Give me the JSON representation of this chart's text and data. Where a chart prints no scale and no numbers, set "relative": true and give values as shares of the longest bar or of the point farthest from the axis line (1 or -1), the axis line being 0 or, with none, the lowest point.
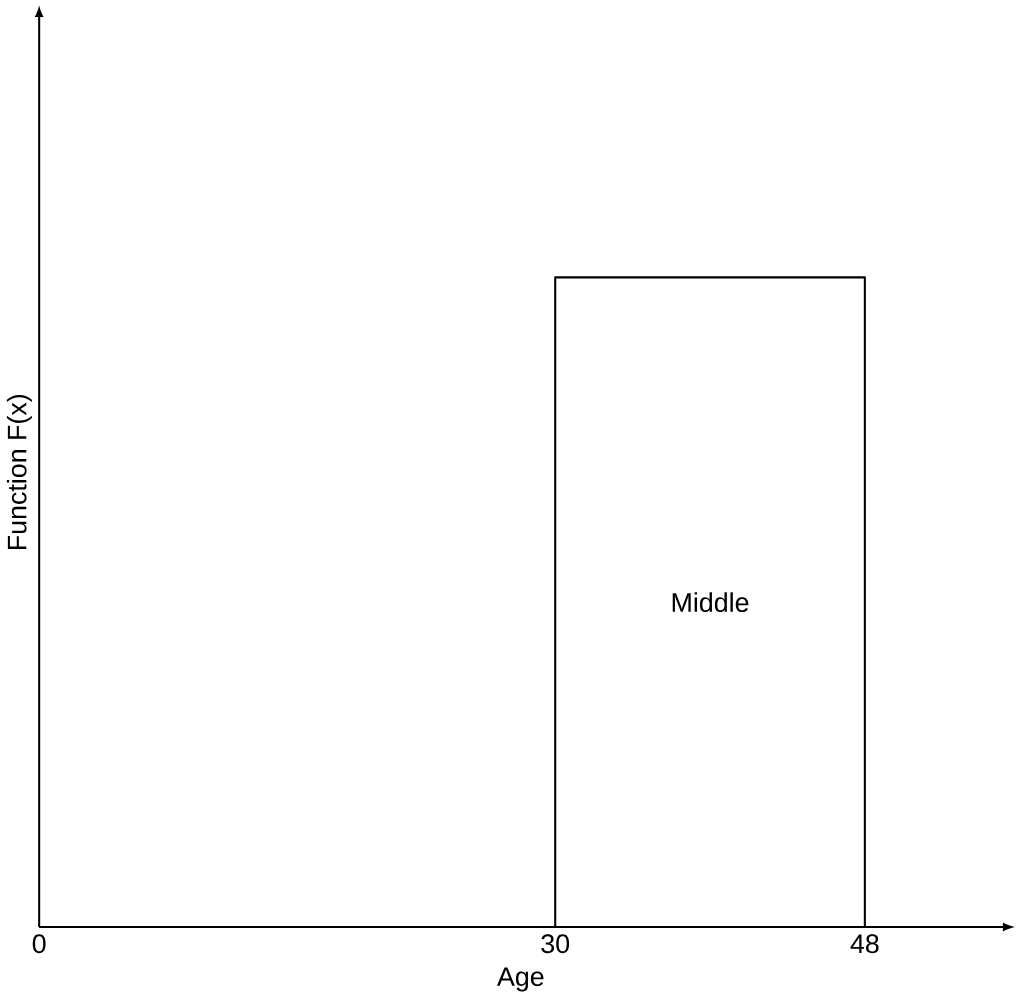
{
  "chart_data": {
    "type": "step",
    "xlabel": "Age",
    "ylabel": "Function F(x)",
    "relative": true,
    "tick_labels": "x",
    "xlim": [
      0,
      56
    ],
    "xticks": [
      0,
      30,
      48
    ],
    "x": [
      0,
      30,
      48
    ],
    "series": [
      {
        "color": "#000000",
        "values": [
          0,
          1,
          0
        ]
      }
    ],
    "annotations": [
      "Middle"
    ]
  }
}
